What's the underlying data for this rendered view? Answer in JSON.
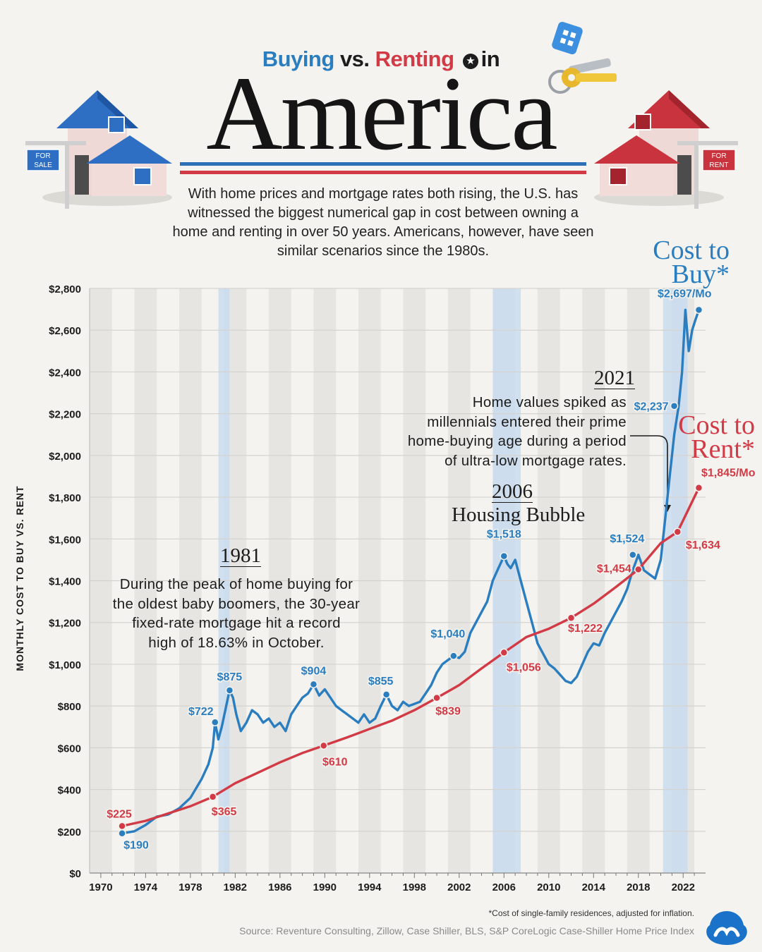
{
  "header": {
    "subtitle_buy": "Buying",
    "subtitle_vs": "vs.",
    "subtitle_rent": "Renting",
    "subtitle_in": "in",
    "title": "America",
    "intro": "With home prices and mortgage rates both rising, the U.S. has witnessed the biggest numerical gap in cost between owning a home and renting in over 50 years. Americans, however, have seen similar scenarios since the 1980s.",
    "for_sale_sign": [
      "FOR",
      "SALE"
    ],
    "for_rent_sign": [
      "FOR",
      "RENT"
    ]
  },
  "colors": {
    "buy": "#2a7ec0",
    "rent": "#d23a45",
    "background": "#f4f3ef",
    "highlight": "#c9dcef"
  },
  "icons": {
    "sale_house": "blue-house-for-sale-icon",
    "rent_house": "red-house-for-rent-icon",
    "keys": "house-keys-icon",
    "logo": "visual-capitalist-logo-icon"
  },
  "annotations": {
    "a1981": {
      "year": "1981",
      "lines": [
        "During the peak of home buying for",
        "the oldest baby boomers, the 30-year",
        "fixed-rate mortgage hit a record",
        "high of 18.63% in October."
      ]
    },
    "a2006": {
      "year": "2006",
      "label": "Housing Bubble"
    },
    "a2021": {
      "year": "2021",
      "lines": [
        "Home values spiked as",
        "millennials entered their prime",
        "home-buying age during a period",
        "of ultra-low mortgage rates."
      ]
    }
  },
  "series_titles": {
    "buy": [
      "Cost to",
      "Buy*"
    ],
    "rent": [
      "Cost to",
      "Rent*"
    ]
  },
  "footnote": "*Cost of single-family residences, adjusted for inflation.",
  "source": "Source: Reventure Consulting, Zillow, Case Shiller, BLS,  S&P CoreLogic Case-Shiller Home Price Index",
  "chart_data": {
    "type": "line",
    "ylabel": "MONTHLY COST TO BUY VS. RENT",
    "xlim": [
      1969,
      2024
    ],
    "ylim": [
      0,
      2800
    ],
    "y_ticks": [
      0,
      200,
      400,
      600,
      800,
      1000,
      1200,
      1400,
      1600,
      1800,
      2000,
      2200,
      2400,
      2600,
      2800
    ],
    "y_tick_labels": [
      "$0",
      "$200",
      "$400",
      "$600",
      "$800",
      "$1,000",
      "$1,200",
      "$1,400",
      "$1,600",
      "$1,800",
      "$2,000",
      "$2,200",
      "$2,400",
      "$2,600",
      "$2,800"
    ],
    "x_ticks": [
      1970,
      1974,
      1978,
      1982,
      1986,
      1990,
      1994,
      1998,
      2002,
      2006,
      2010,
      2014,
      2018,
      2022
    ],
    "x_tick_labels": [
      "1970",
      "1974",
      "1978",
      "1982",
      "1986",
      "1990",
      "1994",
      "1998",
      "2002",
      "2006",
      "2010",
      "2014",
      "2018",
      "2022"
    ],
    "grid": true,
    "highlight_ranges": [
      [
        1980.5,
        1981.5
      ],
      [
        2005,
        2007.5
      ],
      [
        2020.2,
        2022.4
      ]
    ],
    "series": [
      {
        "name": "Cost to Buy*",
        "color": "#2a7ec0",
        "x": [
          1971.9,
          1973,
          1974,
          1975,
          1976,
          1977,
          1978,
          1979,
          1979.6,
          1980,
          1980.2,
          1980.5,
          1980.8,
          1981.2,
          1981.5,
          1981.8,
          1982.1,
          1982.5,
          1983,
          1983.5,
          1984,
          1984.5,
          1985,
          1985.5,
          1986,
          1986.5,
          1987,
          1987.5,
          1988,
          1988.5,
          1989,
          1989.5,
          1990,
          1990.5,
          1991,
          1991.5,
          1992,
          1992.5,
          1993,
          1993.5,
          1994,
          1994.5,
          1995,
          1995.5,
          1996,
          1996.5,
          1997,
          1997.5,
          1998,
          1998.5,
          1999,
          1999.5,
          2000,
          2000.5,
          2001,
          2001.5,
          2002,
          2002.5,
          2003,
          2003.5,
          2004,
          2004.5,
          2005,
          2005.5,
          2006,
          2006.3,
          2006.6,
          2007,
          2007.5,
          2008,
          2008.5,
          2009,
          2009.5,
          2010,
          2010.5,
          2011,
          2011.5,
          2012,
          2012.5,
          2013,
          2013.5,
          2014,
          2014.5,
          2015,
          2015.5,
          2016,
          2016.5,
          2017,
          2017.5,
          2018,
          2018.5,
          2019,
          2019.5,
          2020,
          2020.4,
          2020.8,
          2021.2,
          2021.6,
          2021.9,
          2022.2,
          2022.5,
          2022.8,
          2023.1,
          2023.4
        ],
        "values": [
          190,
          200,
          230,
          270,
          280,
          310,
          360,
          450,
          520,
          600,
          722,
          640,
          700,
          800,
          875,
          840,
          760,
          680,
          720,
          780,
          760,
          720,
          740,
          700,
          720,
          680,
          760,
          800,
          840,
          860,
          904,
          850,
          880,
          840,
          800,
          780,
          760,
          740,
          720,
          760,
          720,
          740,
          800,
          855,
          800,
          780,
          820,
          800,
          810,
          820,
          860,
          900,
          960,
          1000,
          1020,
          1040,
          1030,
          1060,
          1150,
          1200,
          1250,
          1300,
          1400,
          1460,
          1518,
          1480,
          1460,
          1500,
          1400,
          1300,
          1200,
          1100,
          1050,
          1000,
          980,
          950,
          920,
          910,
          940,
          1000,
          1060,
          1100,
          1090,
          1150,
          1200,
          1250,
          1300,
          1360,
          1450,
          1524,
          1450,
          1430,
          1410,
          1500,
          1700,
          1900,
          2100,
          2237,
          2400,
          2697,
          2500,
          2600,
          2650,
          2697
        ]
      },
      {
        "name": "Cost to Rent*",
        "color": "#d23a45",
        "x": [
          1971.9,
          1974,
          1976,
          1978,
          1980,
          1982,
          1984,
          1986,
          1988,
          1989.9,
          1992,
          1994,
          1996,
          1998,
          2000,
          2002,
          2004,
          2006,
          2008,
          2010,
          2012,
          2014,
          2016,
          2018,
          2020,
          2021.5,
          2023.4
        ],
        "values": [
          225,
          250,
          285,
          320,
          365,
          430,
          480,
          530,
          575,
          610,
          650,
          690,
          730,
          780,
          839,
          900,
          980,
          1056,
          1130,
          1170,
          1222,
          1290,
          1370,
          1454,
          1580,
          1634,
          1845
        ]
      }
    ],
    "data_labels": [
      {
        "series": "buy",
        "x": 1971.9,
        "y": 190,
        "text": "$190"
      },
      {
        "series": "buy",
        "x": 1980.2,
        "y": 722,
        "text": "$722"
      },
      {
        "series": "buy",
        "x": 1981.5,
        "y": 875,
        "text": "$875"
      },
      {
        "series": "buy",
        "x": 1989,
        "y": 904,
        "text": "$904"
      },
      {
        "series": "buy",
        "x": 1995.5,
        "y": 855,
        "text": "$855"
      },
      {
        "series": "buy",
        "x": 2001.5,
        "y": 1040,
        "text": "$1,040"
      },
      {
        "series": "buy",
        "x": 2006,
        "y": 1518,
        "text": "$1,518"
      },
      {
        "series": "buy",
        "x": 2017.5,
        "y": 1524,
        "text": "$1,524"
      },
      {
        "series": "buy",
        "x": 2021.2,
        "y": 2237,
        "text": "$2,237"
      },
      {
        "series": "buy",
        "x": 2023.4,
        "y": 2697,
        "text": "$2,697/Mo"
      },
      {
        "series": "rent",
        "x": 1971.9,
        "y": 225,
        "text": "$225"
      },
      {
        "series": "rent",
        "x": 1980,
        "y": 365,
        "text": "$365"
      },
      {
        "series": "rent",
        "x": 1989.9,
        "y": 610,
        "text": "$610"
      },
      {
        "series": "rent",
        "x": 2000,
        "y": 839,
        "text": "$839"
      },
      {
        "series": "rent",
        "x": 2006,
        "y": 1056,
        "text": "$1,056"
      },
      {
        "series": "rent",
        "x": 2012,
        "y": 1222,
        "text": "$1,222"
      },
      {
        "series": "rent",
        "x": 2018,
        "y": 1454,
        "text": "$1,454"
      },
      {
        "series": "rent",
        "x": 2021.5,
        "y": 1634,
        "text": "$1,634"
      },
      {
        "series": "rent",
        "x": 2023.4,
        "y": 1845,
        "text": "$1,845/Mo"
      }
    ]
  }
}
